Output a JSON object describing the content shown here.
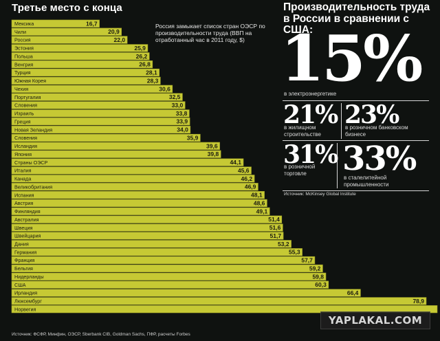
{
  "colors": {
    "bar_fill": "#c6c934",
    "bar_edge": "#9da129",
    "background": "#0f1210",
    "text": "#ffffff"
  },
  "chart_data": {
    "type": "bar",
    "orientation": "horizontal",
    "title": "Третье место с конца",
    "subtitle": "Россия замыкает список стран ОЭСР по производительности труда (ВВП на отработанный час в 2011 году, $)",
    "categories": [
      "Мексика",
      "Чили",
      "Россия",
      "Эстония",
      "Польша",
      "Венгрия",
      "Турция",
      "Южная Корея",
      "Чехия",
      "Португалия",
      "Словения",
      "Израиль",
      "Греция",
      "Новая Зеландия",
      "Словения",
      "Исландия",
      "Япония",
      "Страны ОЭСР",
      "Италия",
      "Канада",
      "Великобритания",
      "Испания",
      "Австрия",
      "Финляндия",
      "Австралия",
      "Швеция",
      "Швейцария",
      "Дания",
      "Германия",
      "Франция",
      "Бельгия",
      "Нидерланды",
      "США",
      "Ирландия",
      "Люксембург",
      "Норвегия"
    ],
    "value_labels": [
      "16,7",
      "20,9",
      "22,0",
      "25,9",
      "26,2",
      "26,8",
      "28,1",
      "28,3",
      "30,6",
      "32,5",
      "33,0",
      "33,8",
      "33,9",
      "34,0",
      "35,9",
      "39,6",
      "39,8",
      "44,1",
      "45,6",
      "46,2",
      "46,9",
      "48,1",
      "48,6",
      "49,1",
      "51,4",
      "51,6",
      "51,7",
      "53,2",
      "55,3",
      "57,7",
      "59,2",
      "59,8",
      "60,3",
      "66,4",
      "78,9",
      ""
    ],
    "values": [
      16.7,
      20.9,
      22.0,
      25.9,
      26.2,
      26.8,
      28.1,
      28.3,
      30.6,
      32.5,
      33.0,
      33.8,
      33.9,
      34.0,
      35.9,
      39.6,
      39.8,
      44.1,
      45.6,
      46.2,
      46.9,
      48.1,
      48.6,
      49.1,
      51.4,
      51.6,
      51.7,
      53.2,
      55.3,
      57.7,
      59.2,
      59.8,
      60.3,
      66.4,
      78.9,
      81.0
    ],
    "xlim": [
      0,
      81
    ],
    "source": "Источник: ФСФР, Минфин, ОЭСР, Sberbank CIB, Goldman Sachs, ПФР, расчеты Forbes"
  },
  "right_panel": {
    "title": "Производительность труда в России в сравнении с США:",
    "big": {
      "value": "15%",
      "caption": "в электроэнергетике"
    },
    "stats": [
      {
        "value": "21%",
        "caption": "в жилищном строительстве"
      },
      {
        "value": "23%",
        "caption": "в розничном банковском бизнесе"
      },
      {
        "value": "31%",
        "caption": "в розничной торговле"
      },
      {
        "value": "33%",
        "caption": "в сталелитейной промышленности"
      }
    ],
    "source": "Источник: McKinsey Global Institute"
  },
  "watermark": "YAPLAKAL.COM"
}
